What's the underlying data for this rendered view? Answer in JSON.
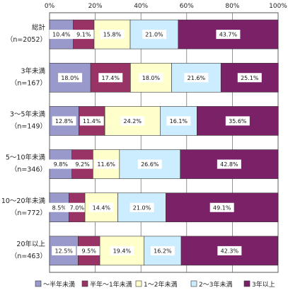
{
  "chart_data": {
    "type": "bar",
    "orientation": "horizontal",
    "stacked": true,
    "percent": true,
    "xlim": [
      0,
      100
    ],
    "x_ticks": [
      "0%",
      "20%",
      "40%",
      "60%",
      "80%",
      "100%"
    ],
    "categories": [
      {
        "name": "総計",
        "n": "（n=2052）"
      },
      {
        "name": "3年未満",
        "n": "（n=167）"
      },
      {
        "name": "3～5年未満",
        "n": "（n=149）"
      },
      {
        "name": "5～10年未満",
        "n": "（n=346）"
      },
      {
        "name": "10～20年未満",
        "n": "（n=772）"
      },
      {
        "name": "20年以上",
        "n": "（n=463）"
      }
    ],
    "series": [
      {
        "name": "～半年未満",
        "color": "#9999cc",
        "values": [
          10.4,
          18.0,
          12.8,
          9.8,
          8.5,
          12.5
        ]
      },
      {
        "name": "半年～1年未満",
        "color": "#993366",
        "values": [
          9.1,
          17.4,
          11.4,
          9.2,
          7.0,
          9.5
        ]
      },
      {
        "name": "1～2年未満",
        "color": "#ffffcc",
        "values": [
          15.8,
          18.0,
          24.2,
          11.6,
          14.4,
          19.4
        ]
      },
      {
        "name": "2～3年未満",
        "color": "#ccecff",
        "values": [
          21.0,
          21.6,
          16.1,
          26.6,
          21.0,
          16.2
        ]
      },
      {
        "name": "3年以上",
        "color": "#7b2168",
        "values": [
          43.7,
          25.1,
          35.6,
          42.8,
          49.1,
          42.3
        ]
      }
    ],
    "labels": [
      [
        "10.4%",
        "9.1%",
        "15.8%",
        "21.0%",
        "43.7%"
      ],
      [
        "18.0%",
        "17.4%",
        "18.0%",
        "21.6%",
        "25.1%"
      ],
      [
        "12.8%",
        "11.4%",
        "24.2%",
        "16.1%",
        "35.6%"
      ],
      [
        "9.8%",
        "9.2%",
        "11.6%",
        "26.6%",
        "42.8%"
      ],
      [
        "8.5%",
        "7.0%",
        "14.4%",
        "21.0%",
        "49.1%"
      ],
      [
        "12.5%",
        "9.5%",
        "19.4%",
        "16.2%",
        "42.3%"
      ]
    ],
    "legend_position": "bottom",
    "grid": true
  }
}
